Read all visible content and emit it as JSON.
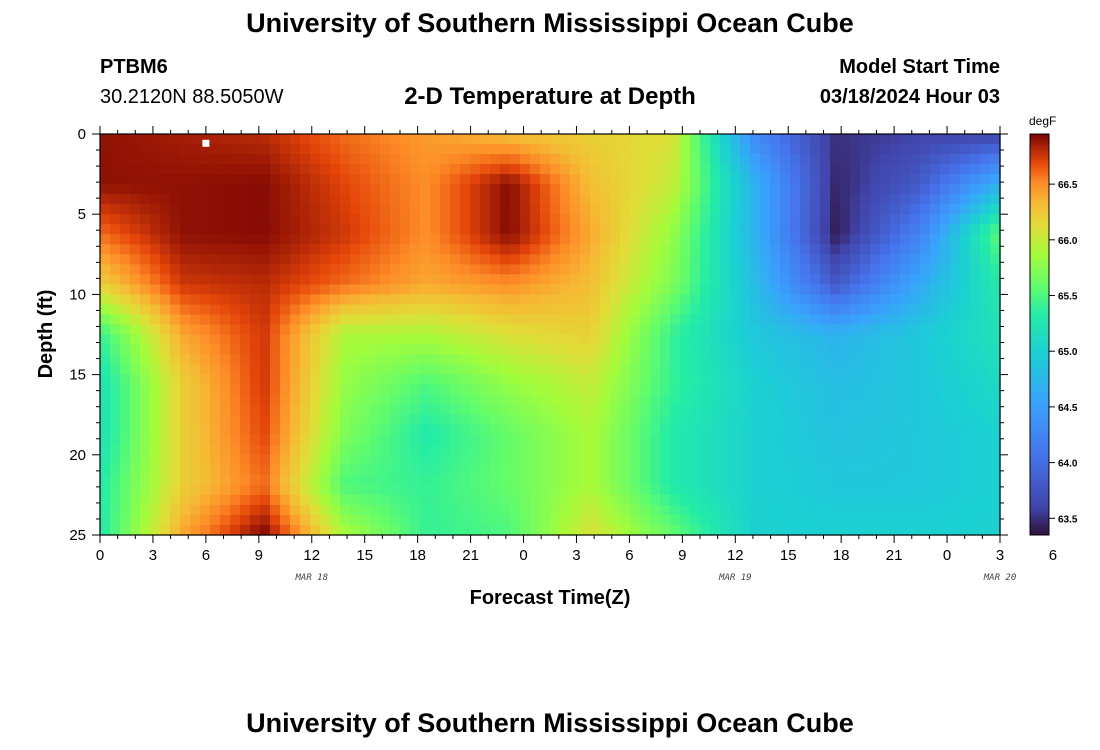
{
  "header": {
    "title": "University of Southern Mississippi Ocean Cube",
    "station_id": "PTBM6",
    "coordinates": "30.2120N  88.5050W",
    "subtitle": "2-D Temperature at Depth",
    "model_start_label": "Model Start Time",
    "model_start_value": "03/18/2024 Hour 03"
  },
  "footer": {
    "title": "University of Southern Mississippi Ocean Cube"
  },
  "chart_data": {
    "type": "heatmap",
    "title": "2-D Temperature at Depth",
    "xlabel": "Forecast Time(Z)",
    "ylabel": "Depth (ft)",
    "x_hours_from_start": [
      0,
      51
    ],
    "x_tick_labels": [
      "0",
      "3",
      "6",
      "9",
      "12",
      "15",
      "18",
      "21",
      "0",
      "3",
      "6",
      "9",
      "12",
      "15",
      "18",
      "21",
      "0",
      "3",
      "6"
    ],
    "x_date_labels": [
      {
        "label": "MAR 18",
        "at_tick": 4
      },
      {
        "label": "MAR 19",
        "at_tick": 12
      },
      {
        "label": "MAR 20",
        "at_tick": 17
      }
    ],
    "ylim": [
      0,
      25
    ],
    "y_tick_labels": [
      "0",
      "5",
      "10",
      "15",
      "20",
      "25"
    ],
    "y_ticks": [
      0,
      5,
      10,
      15,
      20,
      25
    ],
    "colorbar": {
      "unit": "degF",
      "range": [
        63.35,
        66.95
      ],
      "tick_values": [
        63.5,
        64.0,
        64.5,
        65.0,
        65.5,
        66.0,
        66.5
      ],
      "tick_labels": [
        "63.5",
        "64.0",
        "64.5",
        "65.0",
        "65.5",
        "66.0",
        "66.5"
      ]
    },
    "marker": {
      "x_hour": 6,
      "depth": 0.3,
      "color": "#ffffff"
    },
    "grid": false,
    "values_degF": [
      [
        66.9,
        66.85,
        66.8,
        66.6,
        66.45,
        66.3,
        66.2,
        66.1,
        64.3,
        63.5,
        63.6,
        63.6
      ],
      [
        66.9,
        66.9,
        66.92,
        66.7,
        66.5,
        66.92,
        66.3,
        66.0,
        64.7,
        63.45,
        63.8,
        64.7
      ],
      [
        66.6,
        66.9,
        66.92,
        66.75,
        66.5,
        66.92,
        66.4,
        65.8,
        64.7,
        63.4,
        64.2,
        65.6
      ],
      [
        66.2,
        66.75,
        66.8,
        66.6,
        66.4,
        66.5,
        66.3,
        65.7,
        64.8,
        63.8,
        64.6,
        65.3
      ],
      [
        65.4,
        66.4,
        66.75,
        65.9,
        65.9,
        66.1,
        66.2,
        65.4,
        64.9,
        64.7,
        64.9,
        65.2
      ],
      [
        65.2,
        66.2,
        66.75,
        65.8,
        65.5,
        65.8,
        66.0,
        65.4,
        65.0,
        64.8,
        64.9,
        65.1
      ],
      [
        65.2,
        66.2,
        66.7,
        65.7,
        65.3,
        65.6,
        65.9,
        65.3,
        65.0,
        64.85,
        64.9,
        65.0
      ],
      [
        65.3,
        66.2,
        66.6,
        65.5,
        65.4,
        65.6,
        65.9,
        65.3,
        65.0,
        64.9,
        64.9,
        65.0
      ],
      [
        65.3,
        66.4,
        66.95,
        65.9,
        65.4,
        65.5,
        66.1,
        65.6,
        65.0,
        65.0,
        65.0,
        65.0
      ]
    ]
  }
}
